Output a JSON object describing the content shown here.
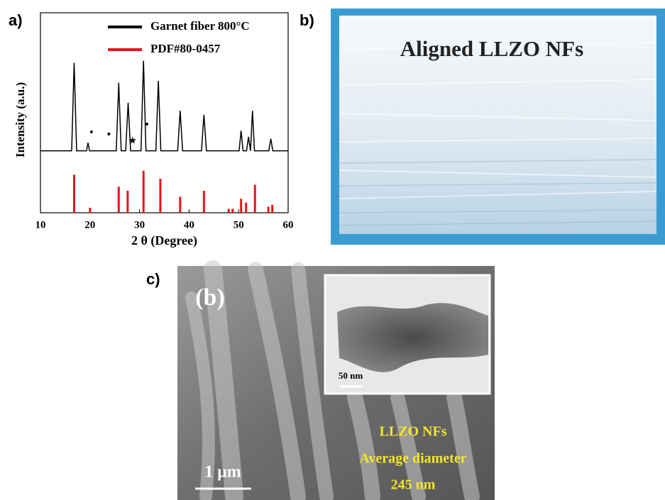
{
  "chart_data": {
    "type": "line",
    "xlabel": "2 θ (Degree)",
    "ylabel": "Intensity (a.u.)",
    "xlim": [
      10,
      60
    ],
    "xticks": [
      10,
      20,
      30,
      40,
      50,
      60
    ],
    "ylim": [
      0,
      100
    ],
    "series": [
      {
        "name": "Garnet fiber 800°C",
        "color": "#000000",
        "type": "line",
        "x": [
          10,
          16.3,
          16.8,
          17.3,
          19.3,
          19.6,
          19.9,
          25.3,
          25.8,
          26.3,
          27.2,
          27.7,
          28.2,
          30.3,
          30.8,
          31.3,
          33.3,
          33.8,
          34.3,
          37.7,
          38.2,
          38.7,
          42.5,
          43,
          43.5,
          50.1,
          50.5,
          50.9,
          51.6,
          52,
          52.4,
          52.8,
          53.2,
          56.1,
          56.5,
          56.9,
          60
        ],
        "values": [
          31,
          31,
          75,
          31,
          31,
          35,
          31,
          31,
          65,
          31,
          31,
          55,
          31,
          31,
          76,
          31,
          31,
          66,
          31,
          31,
          51,
          31,
          31,
          49,
          31,
          31,
          41,
          31,
          31,
          38,
          31,
          51,
          31,
          31,
          37,
          31,
          31
        ]
      },
      {
        "name": "PDF#80-0457",
        "color": "#e8141b",
        "type": "bar",
        "x": [
          16.8,
          20,
          25.8,
          27.6,
          30.8,
          34.2,
          38.2,
          43,
          48,
          48.8,
          50.5,
          51.5,
          53.3,
          56,
          56.8
        ],
        "values": [
          19,
          2.5,
          13,
          11,
          21,
          17,
          8,
          11,
          2,
          2,
          7,
          5,
          14,
          3,
          4
        ]
      }
    ],
    "annotations": [
      {
        "text": "•",
        "x": 20.3,
        "y": 40
      },
      {
        "text": "•",
        "x": 23.8,
        "y": 39
      },
      {
        "text": "★",
        "x": 28.6,
        "y": 36
      },
      {
        "text": "•",
        "x": 31.5,
        "y": 44
      }
    ]
  },
  "panels": {
    "a": "a)",
    "b": "b)",
    "c": "c)"
  },
  "photo": {
    "caption": "Aligned LLZO NFs"
  },
  "micrograph": {
    "label": "(b)",
    "inset_scale": "50 nm",
    "scale_bar": "1 μm",
    "caption": [
      "LLZO NFs",
      "Average diameter",
      "245 nm"
    ]
  }
}
